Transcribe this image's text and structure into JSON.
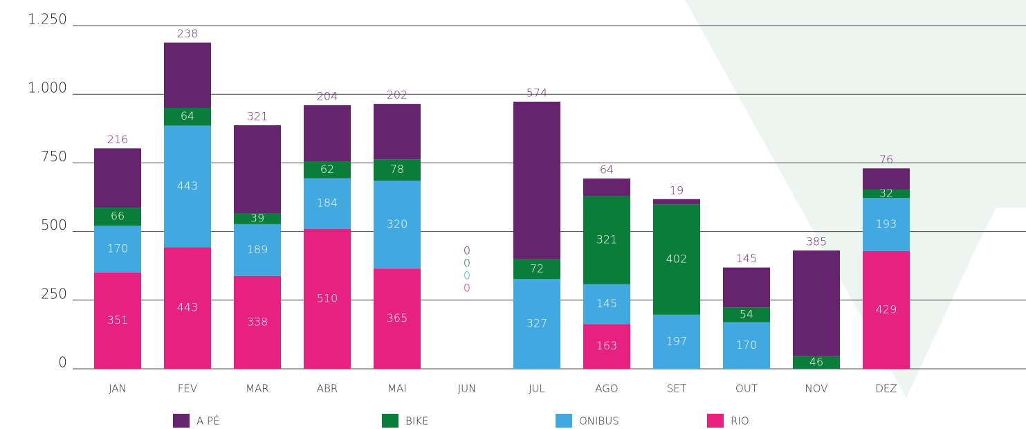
{
  "chart_data": {
    "type": "stacked_bar",
    "categories": [
      "JAN",
      "FEV",
      "MAR",
      "ABR",
      "MAI",
      "JUN",
      "JUL",
      "AGO",
      "SET",
      "OUT",
      "NOV",
      "DEZ"
    ],
    "series": [
      {
        "name": "RIO",
        "color": "#e6217f",
        "values": [
          351,
          443,
          338,
          510,
          365,
          0,
          0,
          163,
          0,
          0,
          0,
          429
        ]
      },
      {
        "name": "ONIBUS",
        "color": "#42a8e0",
        "values": [
          170,
          443,
          189,
          184,
          320,
          0,
          327,
          145,
          197,
          170,
          0,
          193
        ]
      },
      {
        "name": "BIKE",
        "color": "#0a7d3a",
        "values": [
          66,
          64,
          39,
          62,
          78,
          0,
          72,
          321,
          402,
          54,
          46,
          32
        ]
      },
      {
        "name": "A PÉ",
        "color": "#66246e",
        "values": [
          216,
          238,
          321,
          204,
          202,
          0,
          574,
          64,
          19,
          145,
          385,
          76
        ]
      }
    ],
    "legend_order": [
      3,
      2,
      1,
      0
    ],
    "ylim": [
      0,
      1250
    ],
    "yticks": [
      0,
      250,
      500,
      750,
      {
        "value": 1000,
        "label": "1.000"
      },
      {
        "value": 1250,
        "label": "1.250"
      }
    ],
    "grid": true
  }
}
